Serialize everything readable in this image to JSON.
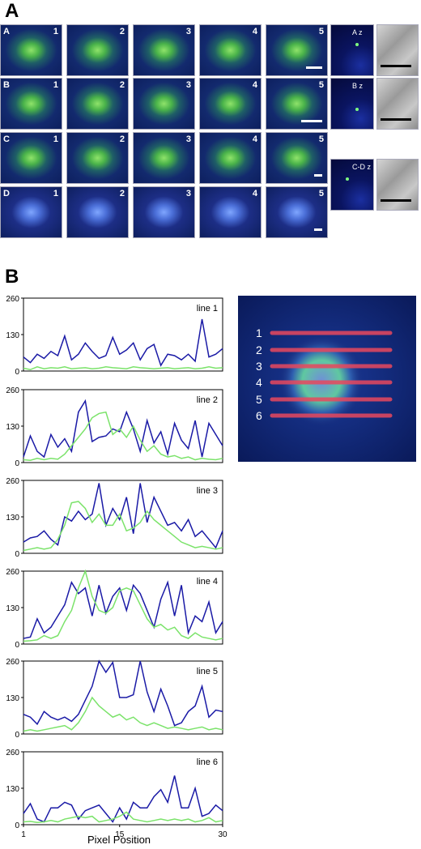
{
  "panel_a": {
    "letter": "A",
    "rows": [
      {
        "label": "A",
        "tiles": [
          "1",
          "2",
          "3",
          "4",
          "5"
        ],
        "z_label": "A z"
      },
      {
        "label": "B",
        "tiles": [
          "1",
          "2",
          "3",
          "4",
          "5"
        ],
        "z_label": "B z"
      },
      {
        "label": "C",
        "tiles": [
          "1",
          "2",
          "3",
          "4",
          "5"
        ],
        "z_label": "C-D z"
      },
      {
        "label": "D",
        "tiles": [
          "1",
          "2",
          "3",
          "4",
          "5"
        ]
      }
    ]
  },
  "panel_b": {
    "letter": "B",
    "x_title": "Pixel Position",
    "image_lines": [
      "1",
      "2",
      "3",
      "4",
      "5",
      "6"
    ],
    "colors": {
      "blue": "#1a1aa6",
      "green": "#7be36a",
      "red_line": "#e8485e"
    }
  },
  "chart_data": [
    {
      "type": "line",
      "title": "line 1",
      "x": [
        1,
        2,
        3,
        4,
        5,
        6,
        7,
        8,
        9,
        10,
        11,
        12,
        13,
        14,
        15,
        16,
        17,
        18,
        19,
        20,
        21,
        22,
        23,
        24,
        25,
        26,
        27,
        28,
        29,
        30
      ],
      "ylim": [
        0,
        260
      ],
      "yticks": [
        0,
        130,
        260
      ],
      "xticks": [
        1,
        15,
        30
      ],
      "series": [
        {
          "color": "#1a1aa6",
          "values": [
            50,
            30,
            60,
            45,
            70,
            55,
            125,
            40,
            60,
            100,
            70,
            45,
            55,
            120,
            60,
            75,
            100,
            40,
            80,
            95,
            20,
            60,
            55,
            40,
            60,
            35,
            185,
            50,
            60,
            80
          ]
        },
        {
          "color": "#7be36a",
          "values": [
            10,
            5,
            15,
            8,
            12,
            10,
            15,
            8,
            10,
            12,
            8,
            10,
            15,
            12,
            10,
            8,
            15,
            12,
            10,
            8,
            10,
            12,
            8,
            10,
            12,
            8,
            10,
            15,
            10,
            12
          ]
        }
      ]
    },
    {
      "type": "line",
      "title": "line 2",
      "x": [
        1,
        2,
        3,
        4,
        5,
        6,
        7,
        8,
        9,
        10,
        11,
        12,
        13,
        14,
        15,
        16,
        17,
        18,
        19,
        20,
        21,
        22,
        23,
        24,
        25,
        26,
        27,
        28,
        29,
        30
      ],
      "ylim": [
        0,
        260
      ],
      "yticks": [
        0,
        130,
        260
      ],
      "xticks": [
        1,
        15,
        30
      ],
      "series": [
        {
          "color": "#1a1aa6",
          "values": [
            20,
            95,
            40,
            20,
            100,
            55,
            85,
            40,
            180,
            220,
            75,
            90,
            95,
            120,
            110,
            180,
            120,
            40,
            150,
            70,
            110,
            30,
            140,
            80,
            50,
            150,
            20,
            140,
            100,
            60
          ]
        },
        {
          "color": "#7be36a",
          "values": [
            10,
            8,
            15,
            10,
            15,
            12,
            30,
            60,
            90,
            120,
            160,
            175,
            180,
            100,
            120,
            90,
            130,
            80,
            40,
            60,
            30,
            20,
            25,
            15,
            20,
            10,
            15,
            12,
            10,
            15
          ]
        }
      ]
    },
    {
      "type": "line",
      "title": "line 3",
      "x": [
        1,
        2,
        3,
        4,
        5,
        6,
        7,
        8,
        9,
        10,
        11,
        12,
        13,
        14,
        15,
        16,
        17,
        18,
        19,
        20,
        21,
        22,
        23,
        24,
        25,
        26,
        27,
        28,
        29,
        30
      ],
      "ylim": [
        0,
        260
      ],
      "yticks": [
        0,
        130,
        260
      ],
      "xticks": [
        1,
        15,
        30
      ],
      "series": [
        {
          "color": "#1a1aa6",
          "values": [
            40,
            55,
            60,
            80,
            50,
            30,
            130,
            115,
            150,
            120,
            140,
            250,
            100,
            160,
            120,
            200,
            70,
            250,
            110,
            200,
            150,
            100,
            110,
            80,
            120,
            60,
            80,
            50,
            20,
            80
          ]
        },
        {
          "color": "#7be36a",
          "values": [
            10,
            15,
            20,
            15,
            20,
            50,
            100,
            180,
            185,
            160,
            110,
            140,
            100,
            100,
            140,
            80,
            90,
            110,
            150,
            120,
            100,
            80,
            60,
            40,
            30,
            20,
            25,
            20,
            15,
            20
          ]
        }
      ]
    },
    {
      "type": "line",
      "title": "line 4",
      "x": [
        1,
        2,
        3,
        4,
        5,
        6,
        7,
        8,
        9,
        10,
        11,
        12,
        13,
        14,
        15,
        16,
        17,
        18,
        19,
        20,
        21,
        22,
        23,
        24,
        25,
        26,
        27,
        28,
        29,
        30
      ],
      "ylim": [
        0,
        260
      ],
      "yticks": [
        0,
        130,
        260
      ],
      "xticks": [
        1,
        15,
        30
      ],
      "series": [
        {
          "color": "#1a1aa6",
          "values": [
            20,
            25,
            90,
            40,
            60,
            100,
            140,
            220,
            180,
            200,
            100,
            210,
            110,
            170,
            200,
            120,
            210,
            180,
            120,
            60,
            160,
            220,
            100,
            210,
            40,
            100,
            80,
            150,
            40,
            80
          ]
        },
        {
          "color": "#7be36a",
          "values": [
            10,
            12,
            15,
            30,
            20,
            30,
            80,
            120,
            200,
            260,
            170,
            120,
            110,
            130,
            190,
            200,
            190,
            140,
            90,
            60,
            70,
            50,
            60,
            30,
            20,
            40,
            25,
            20,
            15,
            20
          ]
        }
      ]
    },
    {
      "type": "line",
      "title": "line 5",
      "x": [
        1,
        2,
        3,
        4,
        5,
        6,
        7,
        8,
        9,
        10,
        11,
        12,
        13,
        14,
        15,
        16,
        17,
        18,
        19,
        20,
        21,
        22,
        23,
        24,
        25,
        26,
        27,
        28,
        29,
        30
      ],
      "ylim": [
        0,
        260
      ],
      "yticks": [
        0,
        130,
        260
      ],
      "xticks": [
        1,
        15,
        30
      ],
      "series": [
        {
          "color": "#1a1aa6",
          "values": [
            70,
            60,
            35,
            80,
            60,
            50,
            60,
            45,
            70,
            120,
            170,
            260,
            220,
            255,
            130,
            130,
            140,
            260,
            150,
            80,
            160,
            100,
            30,
            40,
            80,
            100,
            170,
            60,
            85,
            80
          ]
        },
        {
          "color": "#7be36a",
          "values": [
            10,
            15,
            10,
            15,
            20,
            25,
            30,
            15,
            40,
            80,
            130,
            100,
            80,
            60,
            70,
            50,
            60,
            40,
            30,
            40,
            30,
            20,
            25,
            20,
            15,
            20,
            25,
            15,
            20,
            15
          ]
        }
      ]
    },
    {
      "type": "line",
      "title": "line 6",
      "x": [
        1,
        2,
        3,
        4,
        5,
        6,
        7,
        8,
        9,
        10,
        11,
        12,
        13,
        14,
        15,
        16,
        17,
        18,
        19,
        20,
        21,
        22,
        23,
        24,
        25,
        26,
        27,
        28,
        29,
        30
      ],
      "ylim": [
        0,
        260
      ],
      "yticks": [
        0,
        130,
        260
      ],
      "xticks": [
        1,
        15,
        30
      ],
      "series": [
        {
          "color": "#1a1aa6",
          "values": [
            40,
            75,
            20,
            10,
            60,
            60,
            80,
            70,
            20,
            50,
            60,
            70,
            40,
            10,
            60,
            20,
            80,
            60,
            60,
            100,
            125,
            80,
            175,
            60,
            60,
            130,
            30,
            40,
            70,
            50
          ]
        },
        {
          "color": "#7be36a",
          "values": [
            10,
            12,
            8,
            10,
            15,
            10,
            20,
            25,
            30,
            25,
            30,
            10,
            15,
            20,
            30,
            45,
            20,
            15,
            10,
            15,
            20,
            15,
            20,
            15,
            20,
            10,
            15,
            25,
            10,
            15
          ]
        }
      ]
    }
  ]
}
